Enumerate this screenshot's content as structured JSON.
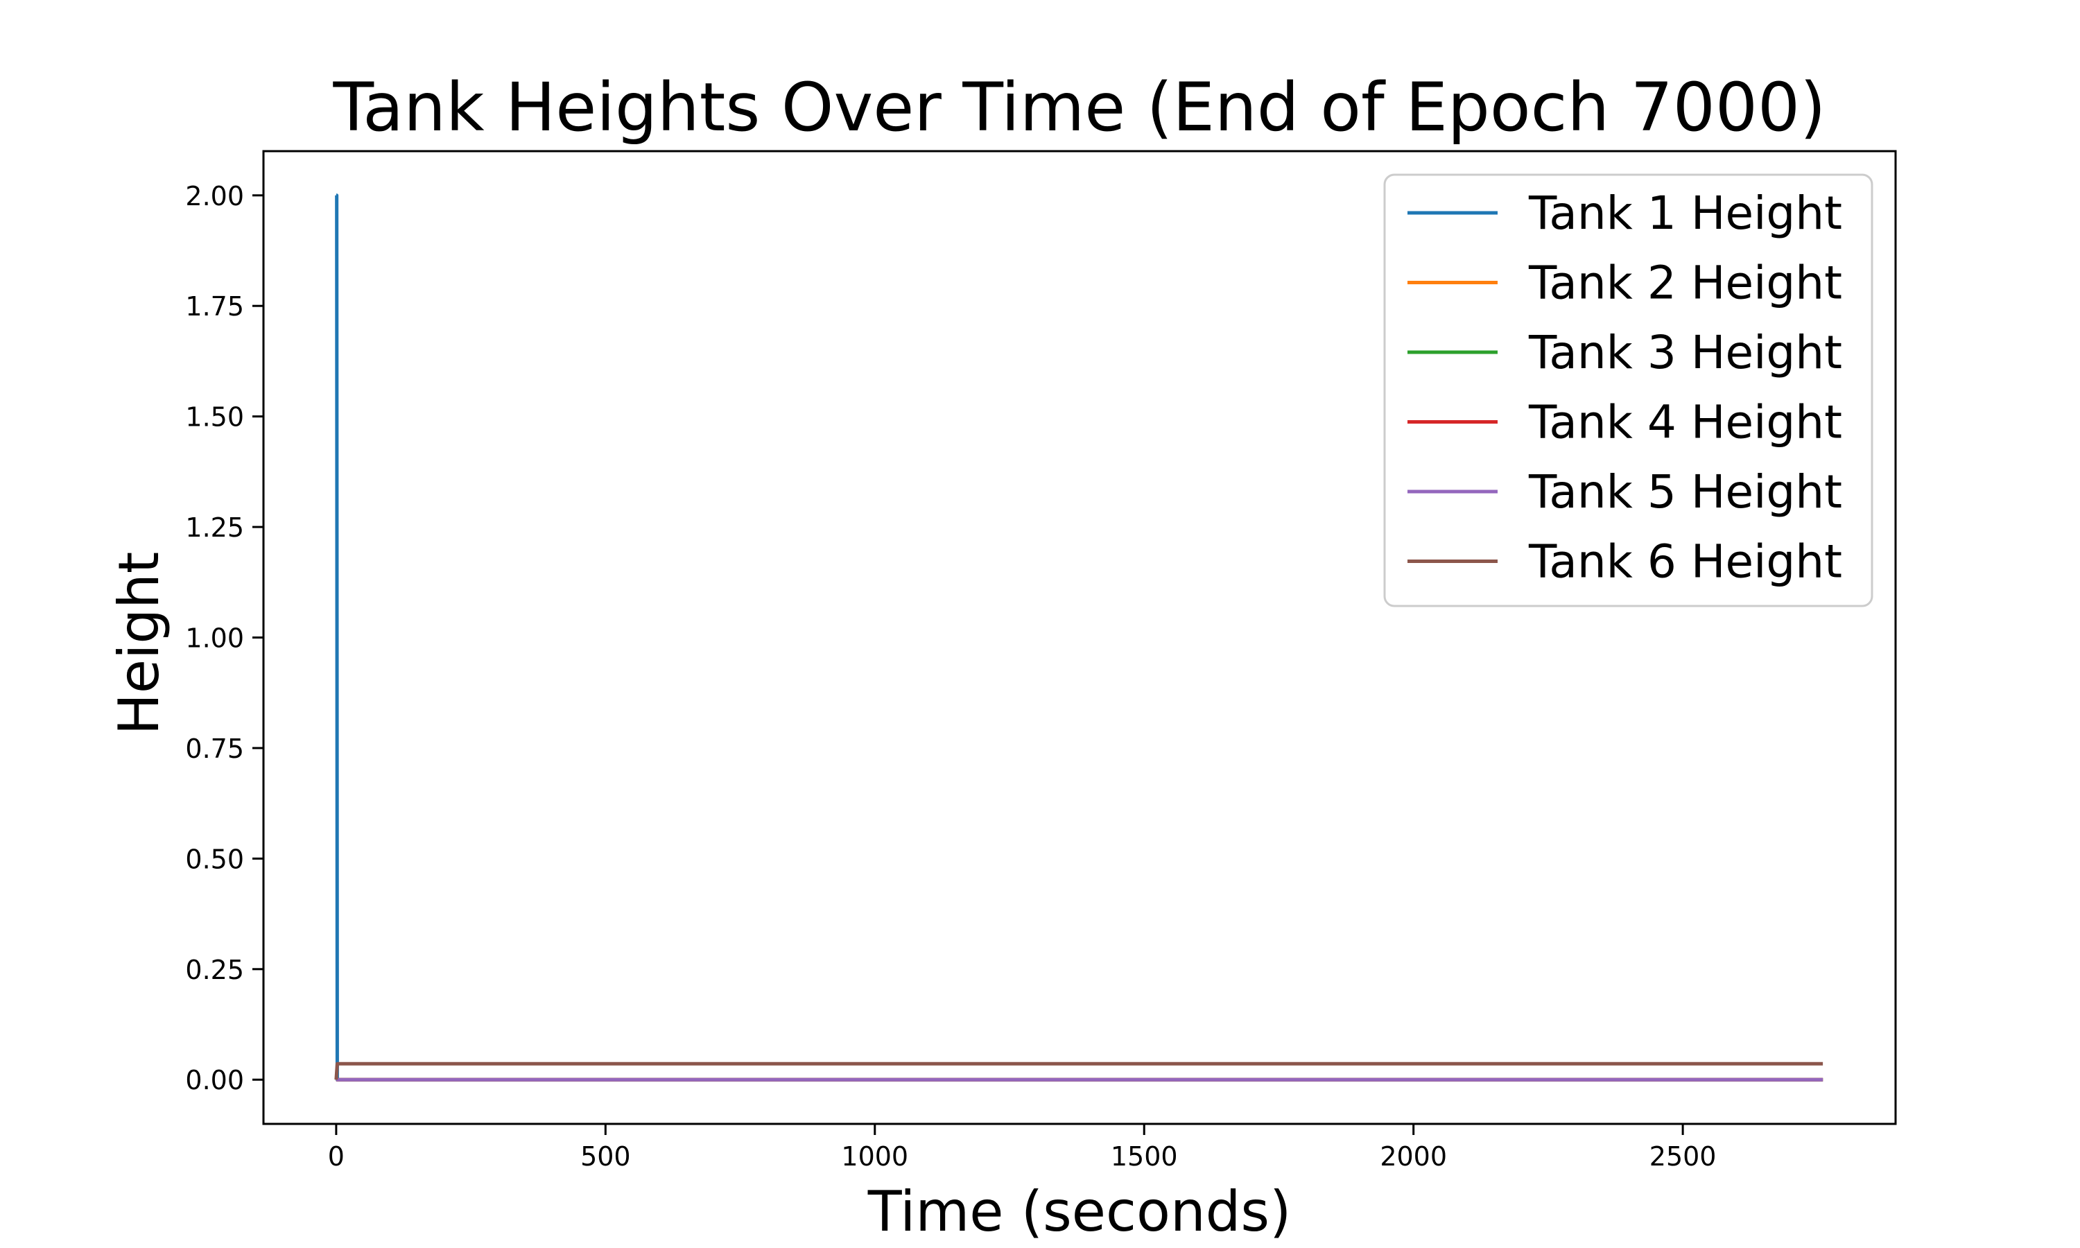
{
  "chart_data": {
    "type": "line",
    "title": "Tank Heights Over Time (End of Epoch 7000)",
    "xlabel": "Time (seconds)",
    "ylabel": "Height",
    "xlim": [
      -135,
      2895
    ],
    "ylim": [
      -0.1,
      2.1
    ],
    "xticks": [
      0,
      500,
      1000,
      1500,
      2000,
      2500
    ],
    "xtick_labels": [
      "0",
      "500",
      "1000",
      "1500",
      "2000",
      "2500"
    ],
    "yticks": [
      0.0,
      0.25,
      0.5,
      0.75,
      1.0,
      1.25,
      1.5,
      1.75,
      2.0
    ],
    "ytick_labels": [
      "0.00",
      "0.25",
      "0.50",
      "0.75",
      "1.00",
      "1.25",
      "1.50",
      "1.75",
      "2.00"
    ],
    "grid": false,
    "legend_position": "top-right",
    "series": [
      {
        "name": "Tank 1 Height",
        "color": "#1f77b4",
        "x": [
          0,
          1,
          2,
          2760
        ],
        "y": [
          2.0,
          2.0,
          0.0,
          0.0
        ]
      },
      {
        "name": "Tank 2 Height",
        "color": "#ff7f0e",
        "x": [
          0,
          2760
        ],
        "y": [
          0.0,
          0.0
        ]
      },
      {
        "name": "Tank 3 Height",
        "color": "#2ca02c",
        "x": [
          0,
          2760
        ],
        "y": [
          0.0,
          0.0
        ]
      },
      {
        "name": "Tank 4 Height",
        "color": "#d62728",
        "x": [
          0,
          2760
        ],
        "y": [
          0.0,
          0.0
        ]
      },
      {
        "name": "Tank 5 Height",
        "color": "#9467bd",
        "x": [
          0,
          2760
        ],
        "y": [
          0.0,
          0.0
        ]
      },
      {
        "name": "Tank 6 Height",
        "color": "#8c564b",
        "x": [
          0,
          2,
          2760
        ],
        "y": [
          0.0,
          0.036,
          0.036
        ]
      }
    ]
  }
}
